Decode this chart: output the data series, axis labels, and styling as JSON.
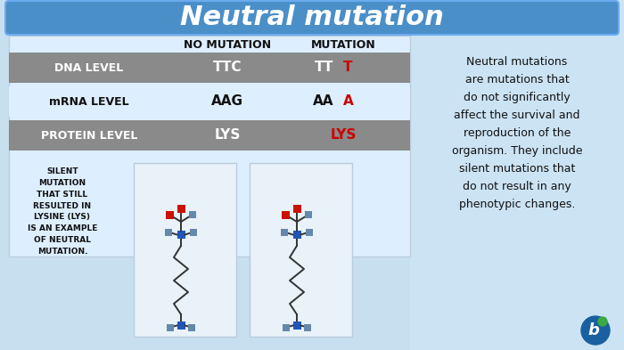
{
  "title": "Neutral mutation",
  "title_color": "#ffffff",
  "title_bg_color": "#4488cc",
  "header_no_mutation": "NO MUTATION",
  "header_mutation": "MUTATION",
  "row1_label": "DNA LEVEL",
  "row1_val1": "TTC",
  "row1_val2_base": "TT",
  "row1_val2_mut": "T",
  "row2_label": "mRNA LEVEL",
  "row2_val1": "AAG",
  "row2_val2_base": "AA",
  "row2_val2_mut": "A",
  "row3_label": "PROTEIN LEVEL",
  "row3_val1": "LYS",
  "row3_val2": "LYS",
  "row_gray_color": "#8a8a8a",
  "row_light_bg": "#cde0f0",
  "mut_color": "#cc0000",
  "silent_text": "SILENT\nMUTATION\nTHAT STILL\nRESULTED IN\nLYSINE (LYS)\nIS AN EXAMPLE\nOF NEUTRAL\nMUTATION.",
  "right_text": "Neutral mutations\nare mutations that\ndo not significantly\naffect the survival and\nreproduction of the\norganism. They include\nsilent mutations that\ndo not result in any\nphenotypic changes.",
  "bg_color_left": "#c8dff0",
  "bg_color_right": "#d0e8f8",
  "title_bg": "#4a8fc8",
  "logo_blue": "#1a5fa0",
  "logo_green": "#3aaa44",
  "mol_bg": "#e8f2f8",
  "mol_border": "#bbccdd",
  "blue_sq": "#2255bb",
  "gray_sq": "#6688aa",
  "red_sq": "#cc1100"
}
